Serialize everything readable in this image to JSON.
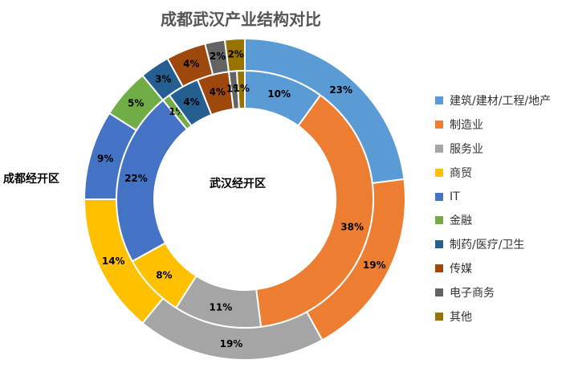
{
  "chart_data": {
    "type": "donut",
    "title": "成都武汉产业结构对比",
    "categories": [
      "建筑/建材/工程/地产",
      "制造业",
      "服务业",
      "商贸",
      "IT",
      "金融",
      "制药/医疗/卫生",
      "传媒",
      "电子商务",
      "其他"
    ],
    "colors": [
      "#5b9bd5",
      "#ed7d31",
      "#a5a5a5",
      "#ffc000",
      "#4472c4",
      "#70ad47",
      "#255e91",
      "#9e480e",
      "#636363",
      "#997300"
    ],
    "series": [
      {
        "name": "成都经开区",
        "ring": "outer",
        "values": [
          23,
          19,
          19,
          14,
          9,
          5,
          3,
          4,
          2,
          2
        ]
      },
      {
        "name": "武汉经开区",
        "ring": "inner",
        "values": [
          10,
          38,
          11,
          8,
          22,
          1,
          4,
          4,
          1,
          1
        ]
      }
    ],
    "legend_position": "right"
  }
}
